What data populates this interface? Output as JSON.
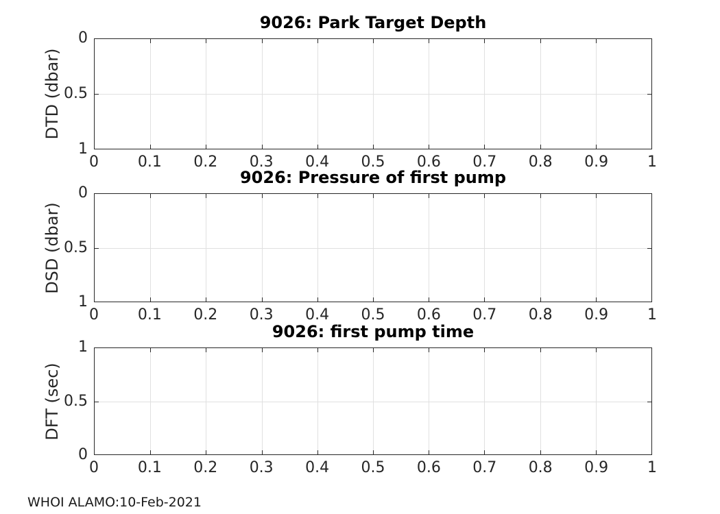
{
  "figure": {
    "background_color": "#ffffff",
    "axis_color": "#262626",
    "grid_color": "#e0e0e0",
    "title_color": "#000000",
    "footer": "WHOI ALAMO:10-Feb-2021"
  },
  "chart_data": [
    {
      "type": "line",
      "title": "9026: Park Target Depth",
      "xlabel": "",
      "ylabel": "DTD (dbar)",
      "xlim": [
        0,
        1
      ],
      "ylim": [
        0,
        1
      ],
      "y_axis_direction": "reversed",
      "grid": true,
      "legend": null,
      "series": [],
      "x_ticks": [
        {
          "f": 0.0,
          "label": "0"
        },
        {
          "f": 0.1,
          "label": "0.1"
        },
        {
          "f": 0.2,
          "label": "0.2"
        },
        {
          "f": 0.3,
          "label": "0.3"
        },
        {
          "f": 0.4,
          "label": "0.4"
        },
        {
          "f": 0.5,
          "label": "0.5"
        },
        {
          "f": 0.6,
          "label": "0.6"
        },
        {
          "f": 0.7,
          "label": "0.7"
        },
        {
          "f": 0.8,
          "label": "0.8"
        },
        {
          "f": 0.9,
          "label": "0.9"
        },
        {
          "f": 1.0,
          "label": "1"
        }
      ],
      "y_ticks": [
        {
          "f": 0.0,
          "label": "0"
        },
        {
          "f": 0.5,
          "label": "0.5"
        },
        {
          "f": 1.0,
          "label": "1"
        }
      ]
    },
    {
      "type": "line",
      "title": "9026: Pressure of first pump",
      "xlabel": "",
      "ylabel": "DSD (dbar)",
      "xlim": [
        0,
        1
      ],
      "ylim": [
        0,
        1
      ],
      "y_axis_direction": "reversed",
      "grid": true,
      "legend": null,
      "series": [],
      "x_ticks": [
        {
          "f": 0.0,
          "label": "0"
        },
        {
          "f": 0.1,
          "label": "0.1"
        },
        {
          "f": 0.2,
          "label": "0.2"
        },
        {
          "f": 0.3,
          "label": "0.3"
        },
        {
          "f": 0.4,
          "label": "0.4"
        },
        {
          "f": 0.5,
          "label": "0.5"
        },
        {
          "f": 0.6,
          "label": "0.6"
        },
        {
          "f": 0.7,
          "label": "0.7"
        },
        {
          "f": 0.8,
          "label": "0.8"
        },
        {
          "f": 0.9,
          "label": "0.9"
        },
        {
          "f": 1.0,
          "label": "1"
        }
      ],
      "y_ticks": [
        {
          "f": 0.0,
          "label": "0"
        },
        {
          "f": 0.5,
          "label": "0.5"
        },
        {
          "f": 1.0,
          "label": "1"
        }
      ]
    },
    {
      "type": "line",
      "title": "9026: first pump time",
      "xlabel": "",
      "ylabel": "DFT (sec)",
      "xlim": [
        0,
        1
      ],
      "ylim": [
        0,
        1
      ],
      "y_axis_direction": "normal",
      "grid": true,
      "legend": null,
      "series": [],
      "x_ticks": [
        {
          "f": 0.0,
          "label": "0"
        },
        {
          "f": 0.1,
          "label": "0.1"
        },
        {
          "f": 0.2,
          "label": "0.2"
        },
        {
          "f": 0.3,
          "label": "0.3"
        },
        {
          "f": 0.4,
          "label": "0.4"
        },
        {
          "f": 0.5,
          "label": "0.5"
        },
        {
          "f": 0.6,
          "label": "0.6"
        },
        {
          "f": 0.7,
          "label": "0.7"
        },
        {
          "f": 0.8,
          "label": "0.8"
        },
        {
          "f": 0.9,
          "label": "0.9"
        },
        {
          "f": 1.0,
          "label": "1"
        }
      ],
      "y_ticks": [
        {
          "f": 0.0,
          "label": "1"
        },
        {
          "f": 0.5,
          "label": "0.5"
        },
        {
          "f": 1.0,
          "label": "0"
        }
      ]
    }
  ]
}
